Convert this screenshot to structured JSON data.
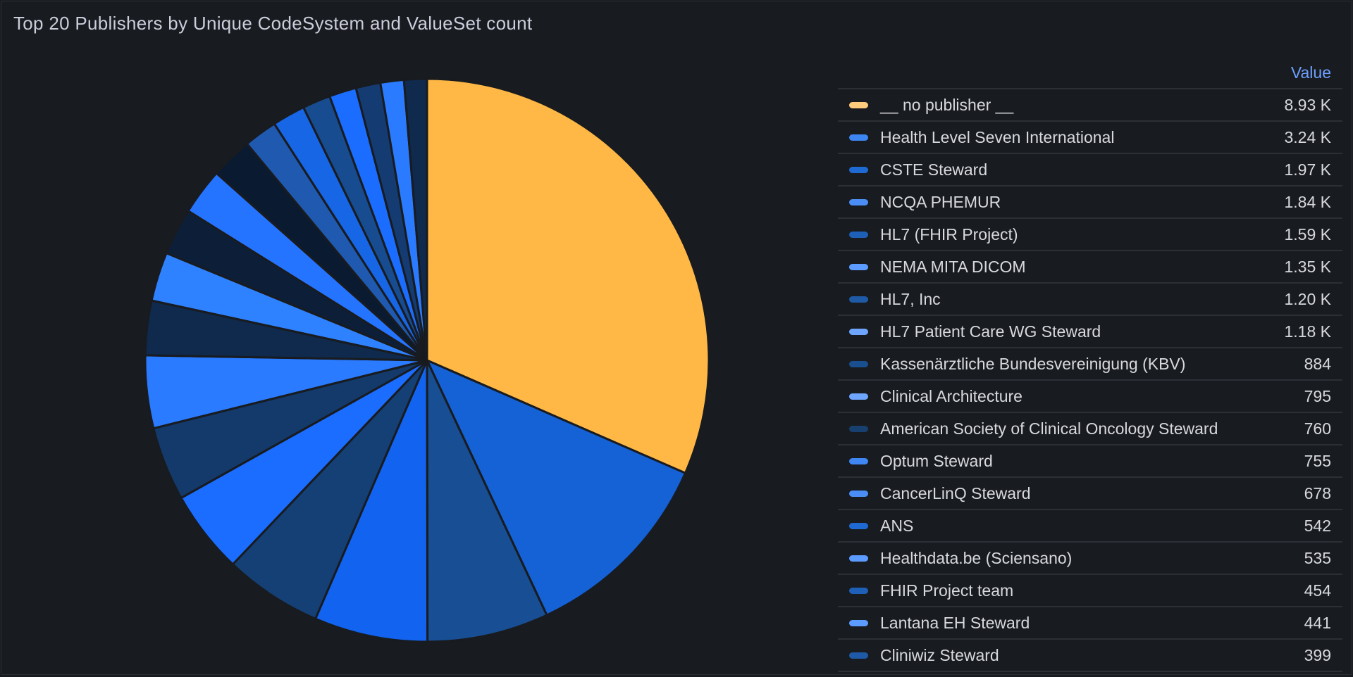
{
  "panel": {
    "title": "Top 20 Publishers by Unique CodeSystem and ValueSet count",
    "legend_header": "Value"
  },
  "chart_data": {
    "type": "pie",
    "title": "Top 20 Publishers by Unique CodeSystem and ValueSet count",
    "legend_placement": "right",
    "legend_column": "Value",
    "slices": [
      {
        "label": "__ no publisher __",
        "value": 8930,
        "display": "8.93 K",
        "color": "#ffb845",
        "legend_color": "#ffcb7d"
      },
      {
        "label": "Health Level Seven International",
        "value": 3240,
        "display": "3.24 K",
        "color": "#1561d6",
        "legend_color": "#3d85f0"
      },
      {
        "label": "CSTE Steward",
        "value": 1970,
        "display": "1.97 K",
        "color": "#184e94",
        "legend_color": "#1f6ad2"
      },
      {
        "label": "NCQA PHEMUR",
        "value": 1840,
        "display": "1.84 K",
        "color": "#1163f0",
        "legend_color": "#4a8ef5"
      },
      {
        "label": "HL7 (FHIR Project)",
        "value": 1590,
        "display": "1.59 K",
        "color": "#154076",
        "legend_color": "#1e5fb8"
      },
      {
        "label": "NEMA MITA DICOM",
        "value": 1350,
        "display": "1.35 K",
        "color": "#1a6dff",
        "legend_color": "#5c9bff"
      },
      {
        "label": "HL7, Inc",
        "value": 1200,
        "display": "1.20 K",
        "color": "#133a6b",
        "legend_color": "#1f5aa6"
      },
      {
        "label": "HL7 Patient Care WG Steward",
        "value": 1180,
        "display": "1.18 K",
        "color": "#2a7bff",
        "legend_color": "#6ea5ff"
      },
      {
        "label": "Kassenärztliche Bundesvereinigung (KBV)",
        "value": 884,
        "display": "884",
        "color": "#0f2a4d",
        "legend_color": "#1a4f8f"
      },
      {
        "label": "Clinical Architecture",
        "value": 795,
        "display": "795",
        "color": "#2f82ff",
        "legend_color": "#6ea5ff"
      },
      {
        "label": "American Society of Clinical Oncology Steward",
        "value": 760,
        "display": "760",
        "color": "#0d1f38",
        "legend_color": "#17406e"
      },
      {
        "label": "Optum Steward",
        "value": 755,
        "display": "755",
        "color": "#2574ff",
        "legend_color": "#3f86f2"
      },
      {
        "label": "CancerLinQ Steward",
        "value": 678,
        "display": "678",
        "color": "#0a1a30",
        "legend_color": "#4a8ef5"
      },
      {
        "label": "ANS",
        "value": 542,
        "display": "542",
        "color": "#1f59b0",
        "legend_color": "#1f6ad2"
      },
      {
        "label": "Healthdata.be (Sciensano)",
        "value": 535,
        "display": "535",
        "color": "#1766e6",
        "legend_color": "#5c9bff"
      },
      {
        "label": "FHIR Project team",
        "value": 454,
        "display": "454",
        "color": "#184c91",
        "legend_color": "#1e5fb8"
      },
      {
        "label": "Lantana EH Steward",
        "value": 441,
        "display": "441",
        "color": "#1a6dff",
        "legend_color": "#5c9bff"
      },
      {
        "label": "Cliniwiz Steward",
        "value": 399,
        "display": "399",
        "color": "#143c72",
        "legend_color": "#1e5aa8"
      },
      {
        "label": "",
        "value": 380,
        "display": "",
        "color": "#2a7bff",
        "legend_color": "#6ea5ff"
      },
      {
        "label": "",
        "value": 370,
        "display": "",
        "color": "#0f2a4d",
        "legend_color": "#1a4f8f"
      }
    ]
  }
}
